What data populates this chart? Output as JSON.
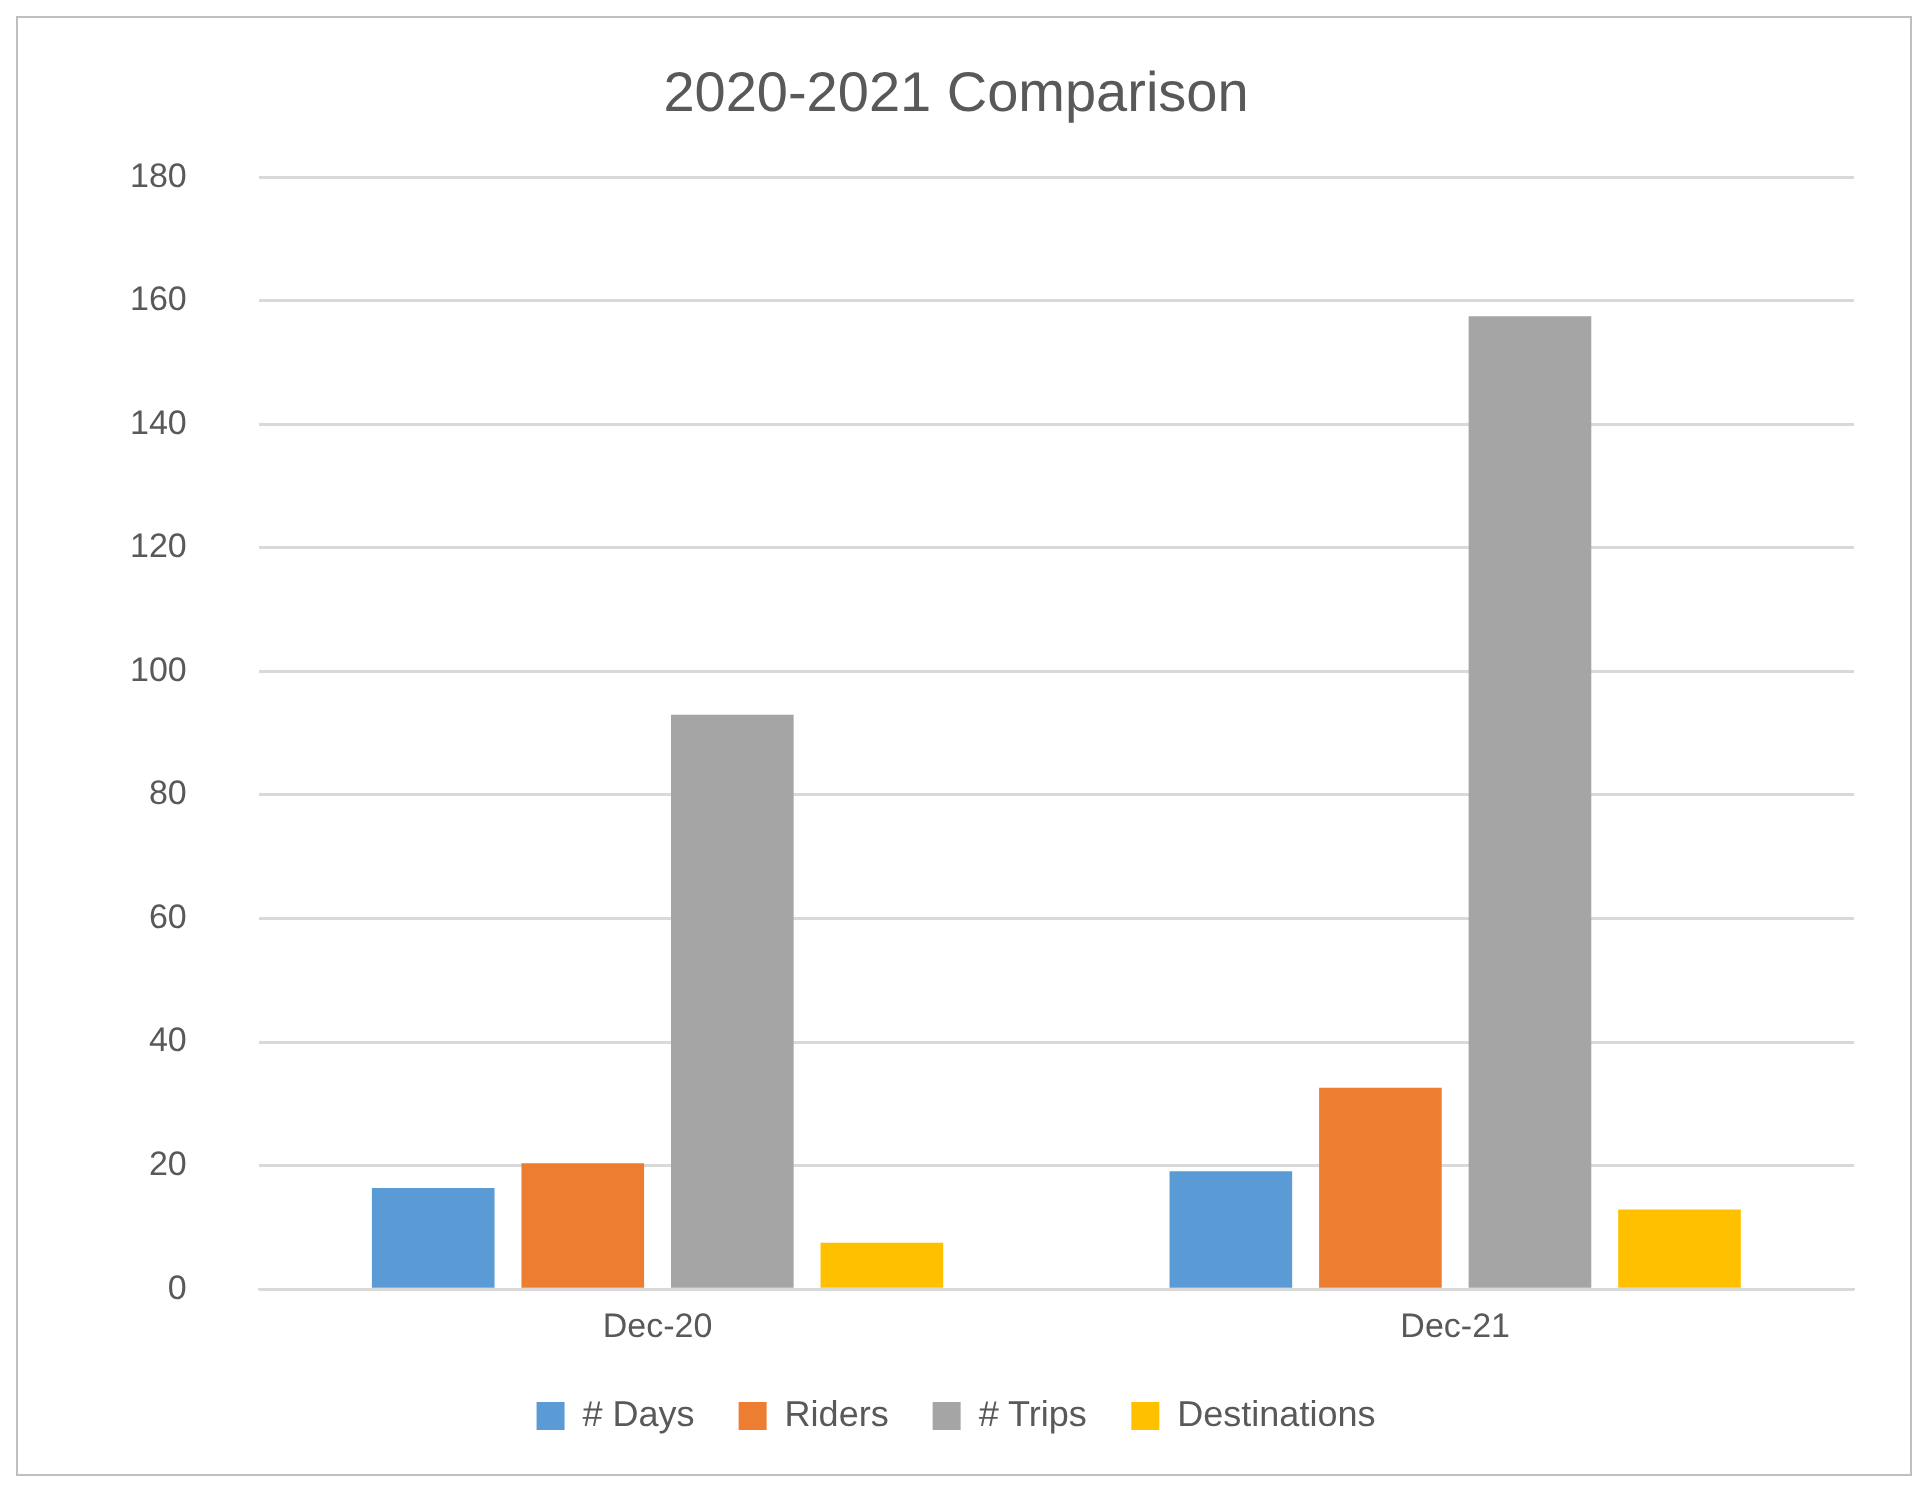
{
  "chart_data": {
    "type": "bar",
    "title": "2020-2021 Comparison",
    "categories": [
      "Dec-20",
      "Dec-21"
    ],
    "series": [
      {
        "name": "# Days",
        "color": "#5b9bd5",
        "values": [
          16.4,
          19.1
        ]
      },
      {
        "name": "Riders",
        "color": "#ed7d31",
        "values": [
          20.4,
          32.6
        ]
      },
      {
        "name": "# Trips",
        "color": "#a5a5a5",
        "values": [
          93,
          157.5
        ]
      },
      {
        "name": "Destinations",
        "color": "#ffc000",
        "values": [
          7.5,
          12.9
        ]
      }
    ],
    "ylim": [
      0,
      180
    ],
    "yticks": [
      0,
      20,
      40,
      60,
      80,
      100,
      120,
      140,
      160,
      180
    ],
    "grid": "y",
    "legend": "bottom"
  }
}
